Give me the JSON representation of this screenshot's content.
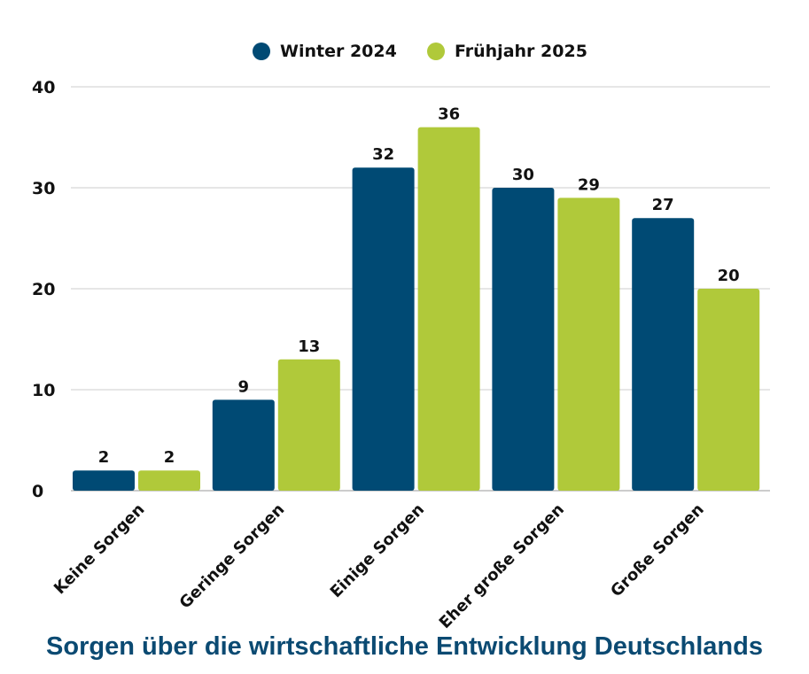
{
  "chart_data": {
    "type": "bar",
    "title": "Sorgen über die wirtschaftliche Entwicklung Deutschlands",
    "categories": [
      "Keine Sorgen",
      "Geringe Sorgen",
      "Einige Sorgen",
      "Eher große Sorgen",
      "Große Sorgen"
    ],
    "series": [
      {
        "name": "Winter 2024",
        "color": "#004a74",
        "values": [
          2,
          9,
          32,
          30,
          27
        ]
      },
      {
        "name": "Frühjahr 2025",
        "color": "#b0c93a",
        "values": [
          2,
          13,
          36,
          29,
          20
        ]
      }
    ],
    "ylim": [
      0,
      40
    ],
    "yticks": [
      0,
      10,
      20,
      30,
      40
    ],
    "grid": true,
    "legend_position": "top-center",
    "xlabel": "",
    "ylabel": ""
  }
}
